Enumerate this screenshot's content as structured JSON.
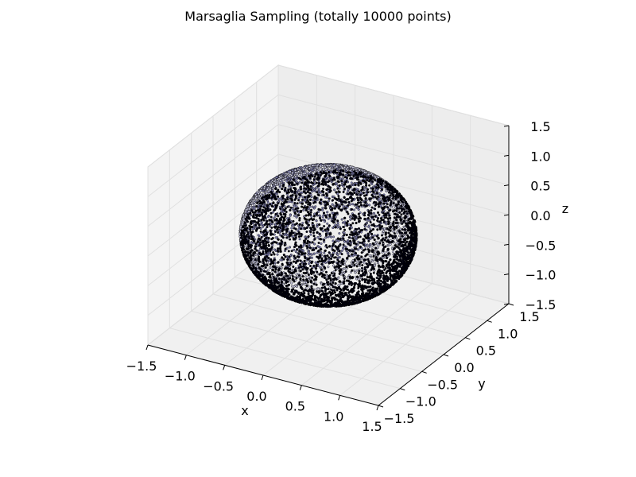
{
  "chart_data": {
    "type": "scatter",
    "projection": "3d",
    "title": "Marsaglia Sampling (totally 10000 points)",
    "xlabel": "x",
    "ylabel": "y",
    "zlabel": "z",
    "xlim": [
      -1.5,
      1.5
    ],
    "ylim": [
      -1.5,
      1.5
    ],
    "zlim": [
      -1.5,
      1.5
    ],
    "x_ticks": [
      "−1.5",
      "−1.0",
      "−0.5",
      "0.0",
      "0.5",
      "1.0",
      "1.5"
    ],
    "y_ticks": [
      "−1.5",
      "−1.0",
      "−0.5",
      "0.0",
      "0.5",
      "1.0",
      "1.5"
    ],
    "z_ticks": [
      "−1.5",
      "−1.0",
      "−0.5",
      "0.0",
      "0.5",
      "1.0",
      "1.5"
    ],
    "tick_values": [
      -1.5,
      -1.0,
      -0.5,
      0.0,
      0.5,
      1.0,
      1.5
    ],
    "grid": true,
    "distribution": "uniform on unit sphere",
    "radius": 1.0,
    "center": [
      0,
      0,
      0
    ],
    "point_count": 10000,
    "marker_color": "#000000",
    "marker_face_colors": [
      "#000010",
      "#7f7fb0",
      "#c8c8e0"
    ],
    "pane_color": "#f2f2f2"
  }
}
